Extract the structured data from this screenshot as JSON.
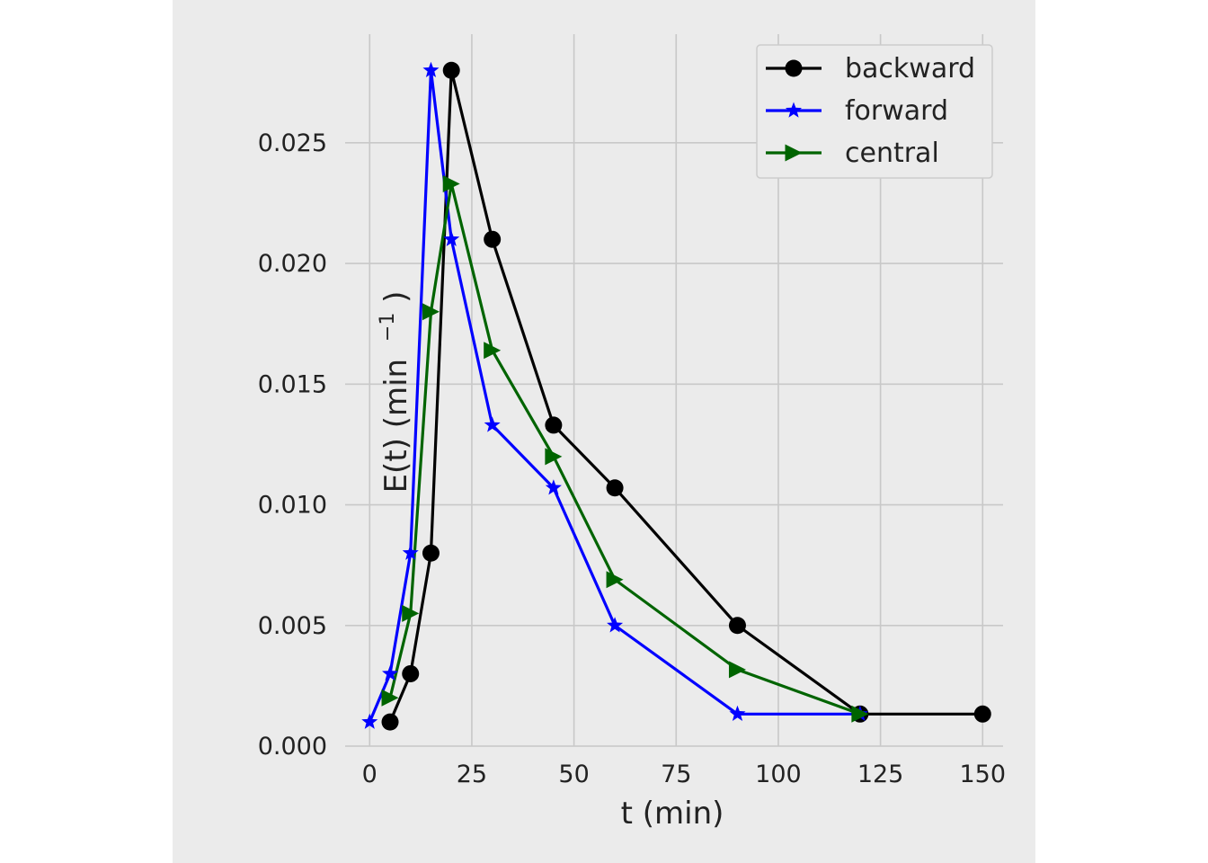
{
  "chart_data": {
    "type": "line",
    "title": "",
    "xlabel": "t (min)",
    "ylabel_main": "E(t) (min",
    "ylabel_sup": "−1",
    "ylabel_close": ")",
    "xlim": [
      -6,
      155
    ],
    "ylim": [
      0,
      0.0295
    ],
    "xticks": [
      0,
      25,
      50,
      75,
      100,
      125,
      150
    ],
    "xtick_labels": [
      "0",
      "25",
      "50",
      "75",
      "100",
      "125",
      "150"
    ],
    "yticks": [
      0,
      0.005,
      0.01,
      0.015,
      0.02,
      0.025
    ],
    "ytick_labels": [
      "0.000",
      "0.005",
      "0.010",
      "0.015",
      "0.020",
      "0.025"
    ],
    "grid": true,
    "legend_position": "top-right",
    "series": [
      {
        "name": "backward",
        "color": "#000000",
        "marker": "circle",
        "x": [
          5,
          10,
          15,
          20,
          30,
          45,
          60,
          90,
          120,
          150
        ],
        "y": [
          0.001,
          0.003,
          0.008,
          0.028,
          0.021,
          0.0133,
          0.0107,
          0.005,
          0.00133,
          0.00133
        ]
      },
      {
        "name": "forward",
        "color": "#0000ff",
        "marker": "star",
        "x": [
          0,
          5,
          10,
          15,
          20,
          30,
          45,
          60,
          90,
          120
        ],
        "y": [
          0.001,
          0.003,
          0.008,
          0.028,
          0.021,
          0.0133,
          0.0107,
          0.005,
          0.00133,
          0.00133
        ]
      },
      {
        "name": "central",
        "color": "#006400",
        "marker": "triangle-right",
        "x": [
          5,
          10,
          15,
          20,
          30,
          45,
          60,
          90,
          120
        ],
        "y": [
          0.002,
          0.0055,
          0.018,
          0.0233,
          0.0164,
          0.012,
          0.0069,
          0.00317,
          0.00133
        ]
      }
    ]
  }
}
